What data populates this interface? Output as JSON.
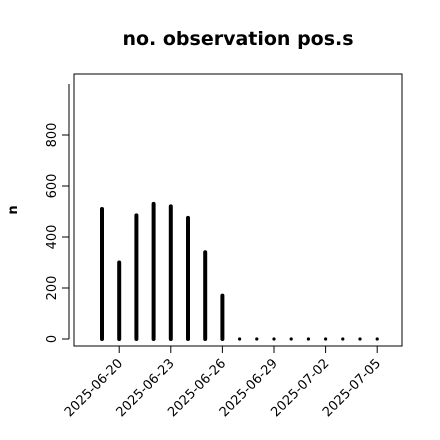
{
  "chart_data": {
    "type": "bar",
    "title": "no. observation pos.s",
    "ylabel": "n",
    "xlabel": "",
    "ylim": [
      0,
      1000
    ],
    "yticks": [
      0,
      200,
      400,
      600,
      800
    ],
    "x": [
      "2025-06-19",
      "2025-06-20",
      "2025-06-21",
      "2025-06-22",
      "2025-06-23",
      "2025-06-24",
      "2025-06-25",
      "2025-06-26",
      "2025-06-27",
      "2025-06-28",
      "2025-06-29",
      "2025-06-30",
      "2025-07-01",
      "2025-07-02",
      "2025-07-03",
      "2025-07-04",
      "2025-07-05"
    ],
    "values": [
      510,
      300,
      485,
      530,
      520,
      475,
      340,
      170,
      0,
      0,
      0,
      0,
      0,
      0,
      0,
      0,
      0
    ],
    "xtick_labels": [
      {
        "date": "2025-06-20",
        "label": "2025-06-20",
        "color": "#000000"
      },
      {
        "date": "2025-06-23",
        "label": "2025-06-23",
        "color": "#000000"
      },
      {
        "date": "2025-06-26",
        "label": "2025-06-26",
        "color": "#228B22"
      },
      {
        "date": "2025-06-29",
        "label": "2025-06-29",
        "color": "#000000"
      },
      {
        "date": "2025-07-02",
        "label": "2025-07-02",
        "color": "#000000"
      },
      {
        "date": "2025-07-05",
        "label": "2025-07-05",
        "color": "#000000"
      }
    ],
    "bar_color": "#000000",
    "grid": false,
    "legend": "none"
  }
}
